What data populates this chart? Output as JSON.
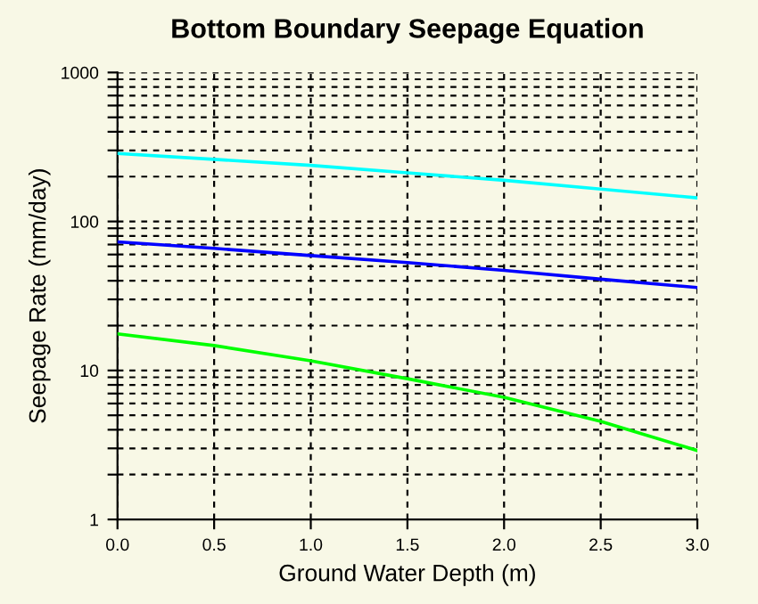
{
  "chart_data": {
    "type": "line",
    "title": "Bottom Boundary Seepage Equation",
    "xlabel": "Ground Water Depth (m)",
    "ylabel": "Seepage Rate (mm/day)",
    "log": "y",
    "grid": true,
    "line_style": "solid",
    "marker": "none",
    "xlim": [
      0,
      3
    ],
    "xticks": [
      {
        "value": 0,
        "label": "0.0"
      },
      {
        "value": 0.5,
        "label": "0.5"
      },
      {
        "value": 1,
        "label": "1.0"
      },
      {
        "value": 1.5,
        "label": "1.5"
      },
      {
        "value": 2,
        "label": "2.0"
      },
      {
        "value": 2.5,
        "label": "2.5"
      },
      {
        "value": 3,
        "label": "3.0"
      }
    ],
    "ylim": [
      1,
      1000
    ],
    "yticks": [
      1,
      {
        "value": 2,
        "label": null
      },
      {
        "value": 3,
        "label": null
      },
      {
        "value": 4,
        "label": null
      },
      {
        "value": 5,
        "label": null
      },
      {
        "value": 6,
        "label": null
      },
      {
        "value": 7,
        "label": null
      },
      {
        "value": 8,
        "label": null
      },
      {
        "value": 9,
        "label": null
      },
      10,
      {
        "value": 20,
        "label": null
      },
      {
        "value": 30,
        "label": null
      },
      {
        "value": 40,
        "label": null
      },
      {
        "value": 50,
        "label": null
      },
      {
        "value": 60,
        "label": null
      },
      {
        "value": 70,
        "label": null
      },
      {
        "value": 80,
        "label": null
      },
      {
        "value": 90,
        "label": null
      },
      100,
      {
        "value": 200,
        "label": null
      },
      {
        "value": 300,
        "label": null
      },
      {
        "value": 400,
        "label": null
      },
      {
        "value": 500,
        "label": null
      },
      {
        "value": 600,
        "label": null
      },
      {
        "value": 700,
        "label": null
      },
      {
        "value": 800,
        "label": null
      },
      {
        "value": 900,
        "label": null
      },
      1000
    ],
    "x": [
      0,
      0.5,
      1,
      1.5,
      2,
      2.5,
      3
    ],
    "series": [
      {
        "color": "#00ffff",
        "values": [
          286,
          261,
          238,
          212,
          189,
          165,
          144
        ]
      },
      {
        "color": "#0000ff",
        "values": [
          73,
          66,
          59,
          53,
          47,
          41,
          36
        ]
      },
      {
        "color": "#00ff00",
        "values": [
          17.6,
          14.7,
          11.6,
          8.8,
          6.6,
          4.55,
          2.9
        ]
      }
    ]
  }
}
